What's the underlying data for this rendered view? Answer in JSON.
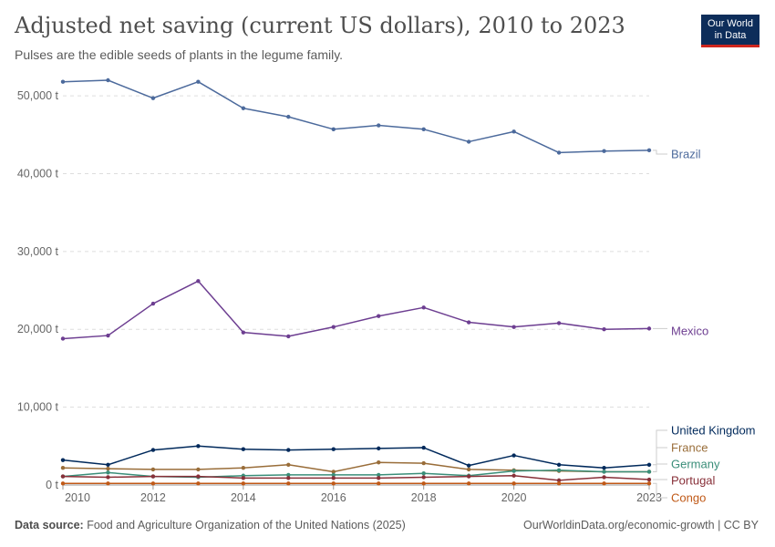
{
  "header": {
    "title": "Adjusted net saving (current US dollars), 2010 to 2023",
    "subtitle": "Pulses are the edible seeds of plants in the legume family.",
    "logo_line1": "Our World",
    "logo_line2": "in Data"
  },
  "footer": {
    "source_label": "Data source:",
    "source_text": "Food and Agriculture Organization of the United Nations (2025)",
    "right_text": "OurWorldinData.org/economic-growth | CC BY"
  },
  "chart_data": {
    "type": "line",
    "title": "Adjusted net saving (current US dollars), 2010 to 2023",
    "subtitle": "Pulses are the edible seeds of plants in the legume family.",
    "y_tick_values": [
      0,
      10000,
      20000,
      30000,
      40000,
      50000
    ],
    "y_tick_labels": [
      "0 t",
      "10,000 t",
      "20,000 t",
      "30,000 t",
      "40,000 t",
      "50,000 t"
    ],
    "x_tick_values": [
      2010,
      2012,
      2014,
      2016,
      2018,
      2020,
      2023
    ],
    "x_tick_labels": [
      "2010",
      "2012",
      "2014",
      "2016",
      "2018",
      "2020",
      "2023"
    ],
    "xlim": [
      2010,
      2023
    ],
    "ylim": [
      0,
      50000
    ],
    "grid": "horizontal dashed",
    "legend": "labels at right end of lines",
    "x": [
      2010,
      2011,
      2012,
      2013,
      2014,
      2015,
      2016,
      2017,
      2018,
      2019,
      2020,
      2021,
      2022,
      2023
    ],
    "series": [
      {
        "name": "Brazil",
        "color": "#4c6a9c",
        "values": [
          51800,
          52000,
          49700,
          51800,
          48400,
          47300,
          45700,
          46200,
          45700,
          44100,
          45400,
          42700,
          42900,
          43000
        ]
      },
      {
        "name": "Mexico",
        "color": "#6d3e91",
        "values": [
          18800,
          19200,
          23300,
          26200,
          19600,
          19100,
          20300,
          21700,
          22800,
          20900,
          20300,
          20800,
          20000,
          20100
        ]
      },
      {
        "name": "United Kingdom",
        "color": "#00295b",
        "values": [
          3200,
          2600,
          4500,
          5000,
          4600,
          4500,
          4600,
          4700,
          4800,
          2500,
          3800,
          2600,
          2200,
          2600
        ]
      },
      {
        "name": "France",
        "color": "#996d39",
        "values": [
          2200,
          2100,
          2000,
          2000,
          2200,
          2600,
          1700,
          2900,
          2800,
          2000,
          1900,
          1800,
          1700,
          1700
        ]
      },
      {
        "name": "Germany",
        "color": "#3a8e79",
        "values": [
          1100,
          1600,
          1100,
          1000,
          1200,
          1300,
          1300,
          1300,
          1500,
          1200,
          1800,
          1900,
          1700,
          1700
        ]
      },
      {
        "name": "Portugal",
        "color": "#883039",
        "values": [
          1100,
          1000,
          1100,
          1100,
          900,
          900,
          900,
          900,
          1000,
          1100,
          1200,
          600,
          1000,
          700
        ]
      },
      {
        "name": "Congo",
        "color": "#c05917",
        "values": [
          200,
          200,
          200,
          200,
          200,
          200,
          200,
          200,
          200,
          200,
          200,
          200,
          200,
          200
        ]
      }
    ]
  }
}
